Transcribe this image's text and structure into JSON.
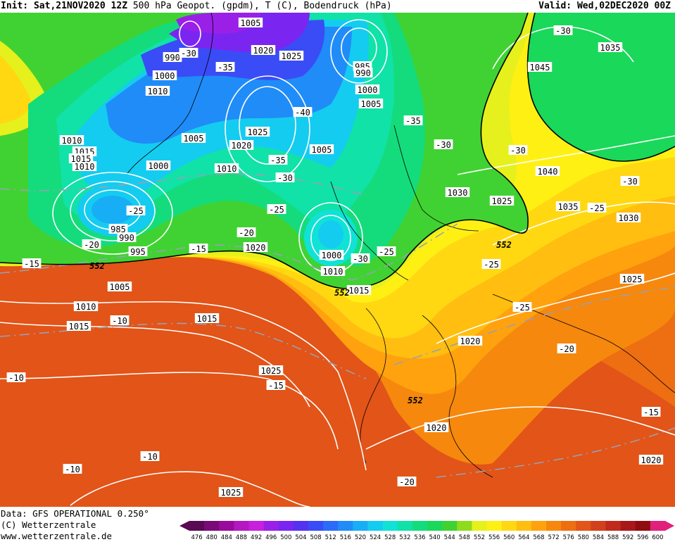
{
  "header": {
    "init_label": "Init:",
    "init_value": "Sat,21NOV2020 12Z",
    "title": "500 hPa Geopot. (gpdm), T (C), Bodendruck (hPa)",
    "valid_label": "Valid:",
    "valid_value": "Wed,02DEC2020 00Z"
  },
  "footer": {
    "line1": "Data: GFS OPERATIONAL 0.250°",
    "line2": "(C) Wetterzentrale",
    "line3": "www.wetterzentrale.de"
  },
  "colorbar": {
    "ticks": [
      "476",
      "480",
      "484",
      "488",
      "492",
      "496",
      "500",
      "504",
      "508",
      "512",
      "516",
      "520",
      "524",
      "528",
      "532",
      "536",
      "540",
      "544",
      "548",
      "552",
      "556",
      "560",
      "564",
      "568",
      "572",
      "576",
      "580",
      "584",
      "588",
      "592",
      "596",
      "600"
    ],
    "colors": [
      "#5a0a52",
      "#7a0a78",
      "#9a0a9c",
      "#b418c0",
      "#c820dc",
      "#9a20e8",
      "#7a26f0",
      "#5432f0",
      "#3a4cf6",
      "#2a6cf8",
      "#208cf8",
      "#18aef6",
      "#14ccf0",
      "#10e2d6",
      "#10e2a8",
      "#14dc7c",
      "#1ad85a",
      "#40d232",
      "#8edc1c",
      "#e6f01c",
      "#fff014",
      "#ffd812",
      "#ffbe10",
      "#ffa20e",
      "#f6880e",
      "#ee6e12",
      "#e25418",
      "#d2401c",
      "#c02a1c",
      "#a81818",
      "#900c10",
      "#e0207a"
    ]
  },
  "map": {
    "pressure_labels": [
      "1005",
      "990",
      "1000",
      "1010",
      "1010",
      "1015",
      "985",
      "990",
      "1000",
      "1005",
      "1045",
      "1035",
      "1025",
      "1020",
      "1015",
      "1010",
      "1005",
      "1020",
      "1025",
      "1010",
      "1000",
      "1005",
      "1040",
      "1030",
      "1025",
      "1035",
      "1030",
      "985",
      "990",
      "995",
      "1020",
      "1000",
      "1010",
      "1015",
      "1005",
      "1010",
      "1015",
      "1015",
      "1025",
      "1020",
      "1020",
      "1025",
      "1020",
      "1025"
    ],
    "temp_labels": [
      "-30",
      "-35",
      "-40",
      "-30",
      "-35",
      "-30",
      "-35",
      "-30",
      "-30",
      "-30",
      "-25",
      "-25",
      "-20",
      "-15",
      "-30",
      "-25",
      "-20",
      "-15",
      "-10",
      "-25",
      "-25",
      "-25",
      "-20",
      "-15",
      "-10",
      "-10",
      "-10",
      "-20",
      "-15"
    ],
    "geopot_labels": [
      "552",
      "552",
      "552",
      "552"
    ]
  }
}
